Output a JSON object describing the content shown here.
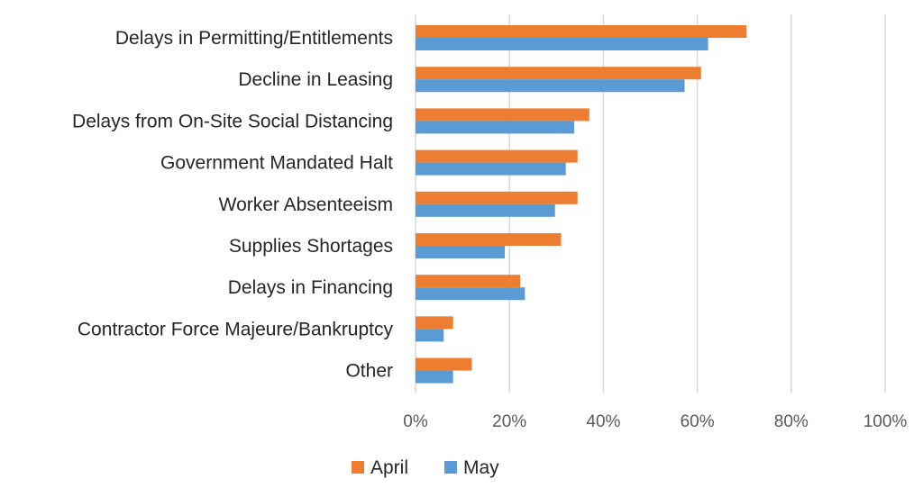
{
  "chart_data": {
    "type": "bar",
    "orientation": "horizontal",
    "categories": [
      "Delays in Permitting/Entitlements",
      "Decline in Leasing",
      "Delays from On-Site Social Distancing",
      "Government Mandated Halt ",
      "Worker Absenteeism",
      "Supplies Shortages",
      "Delays in Financing",
      "Contractor Force Majeure/Bankruptcy",
      "Other"
    ],
    "series": [
      {
        "name": "April",
        "color": "#ED7D31",
        "values": [
          70.5,
          60.8,
          37.0,
          34.5,
          34.5,
          31.0,
          22.3,
          8.0,
          12.0
        ]
      },
      {
        "name": "May",
        "color": "#5B9BD5",
        "values": [
          62.3,
          57.3,
          33.8,
          32.0,
          29.7,
          19.0,
          23.3,
          6.0,
          8.0
        ]
      }
    ],
    "xlim": [
      0,
      100
    ],
    "xticks": [
      0,
      20,
      40,
      60,
      80,
      100
    ],
    "xtick_labels": [
      "0%",
      "20%",
      "40%",
      "60%",
      "80%",
      "100%"
    ],
    "grid": true,
    "legend_position": "bottom"
  }
}
